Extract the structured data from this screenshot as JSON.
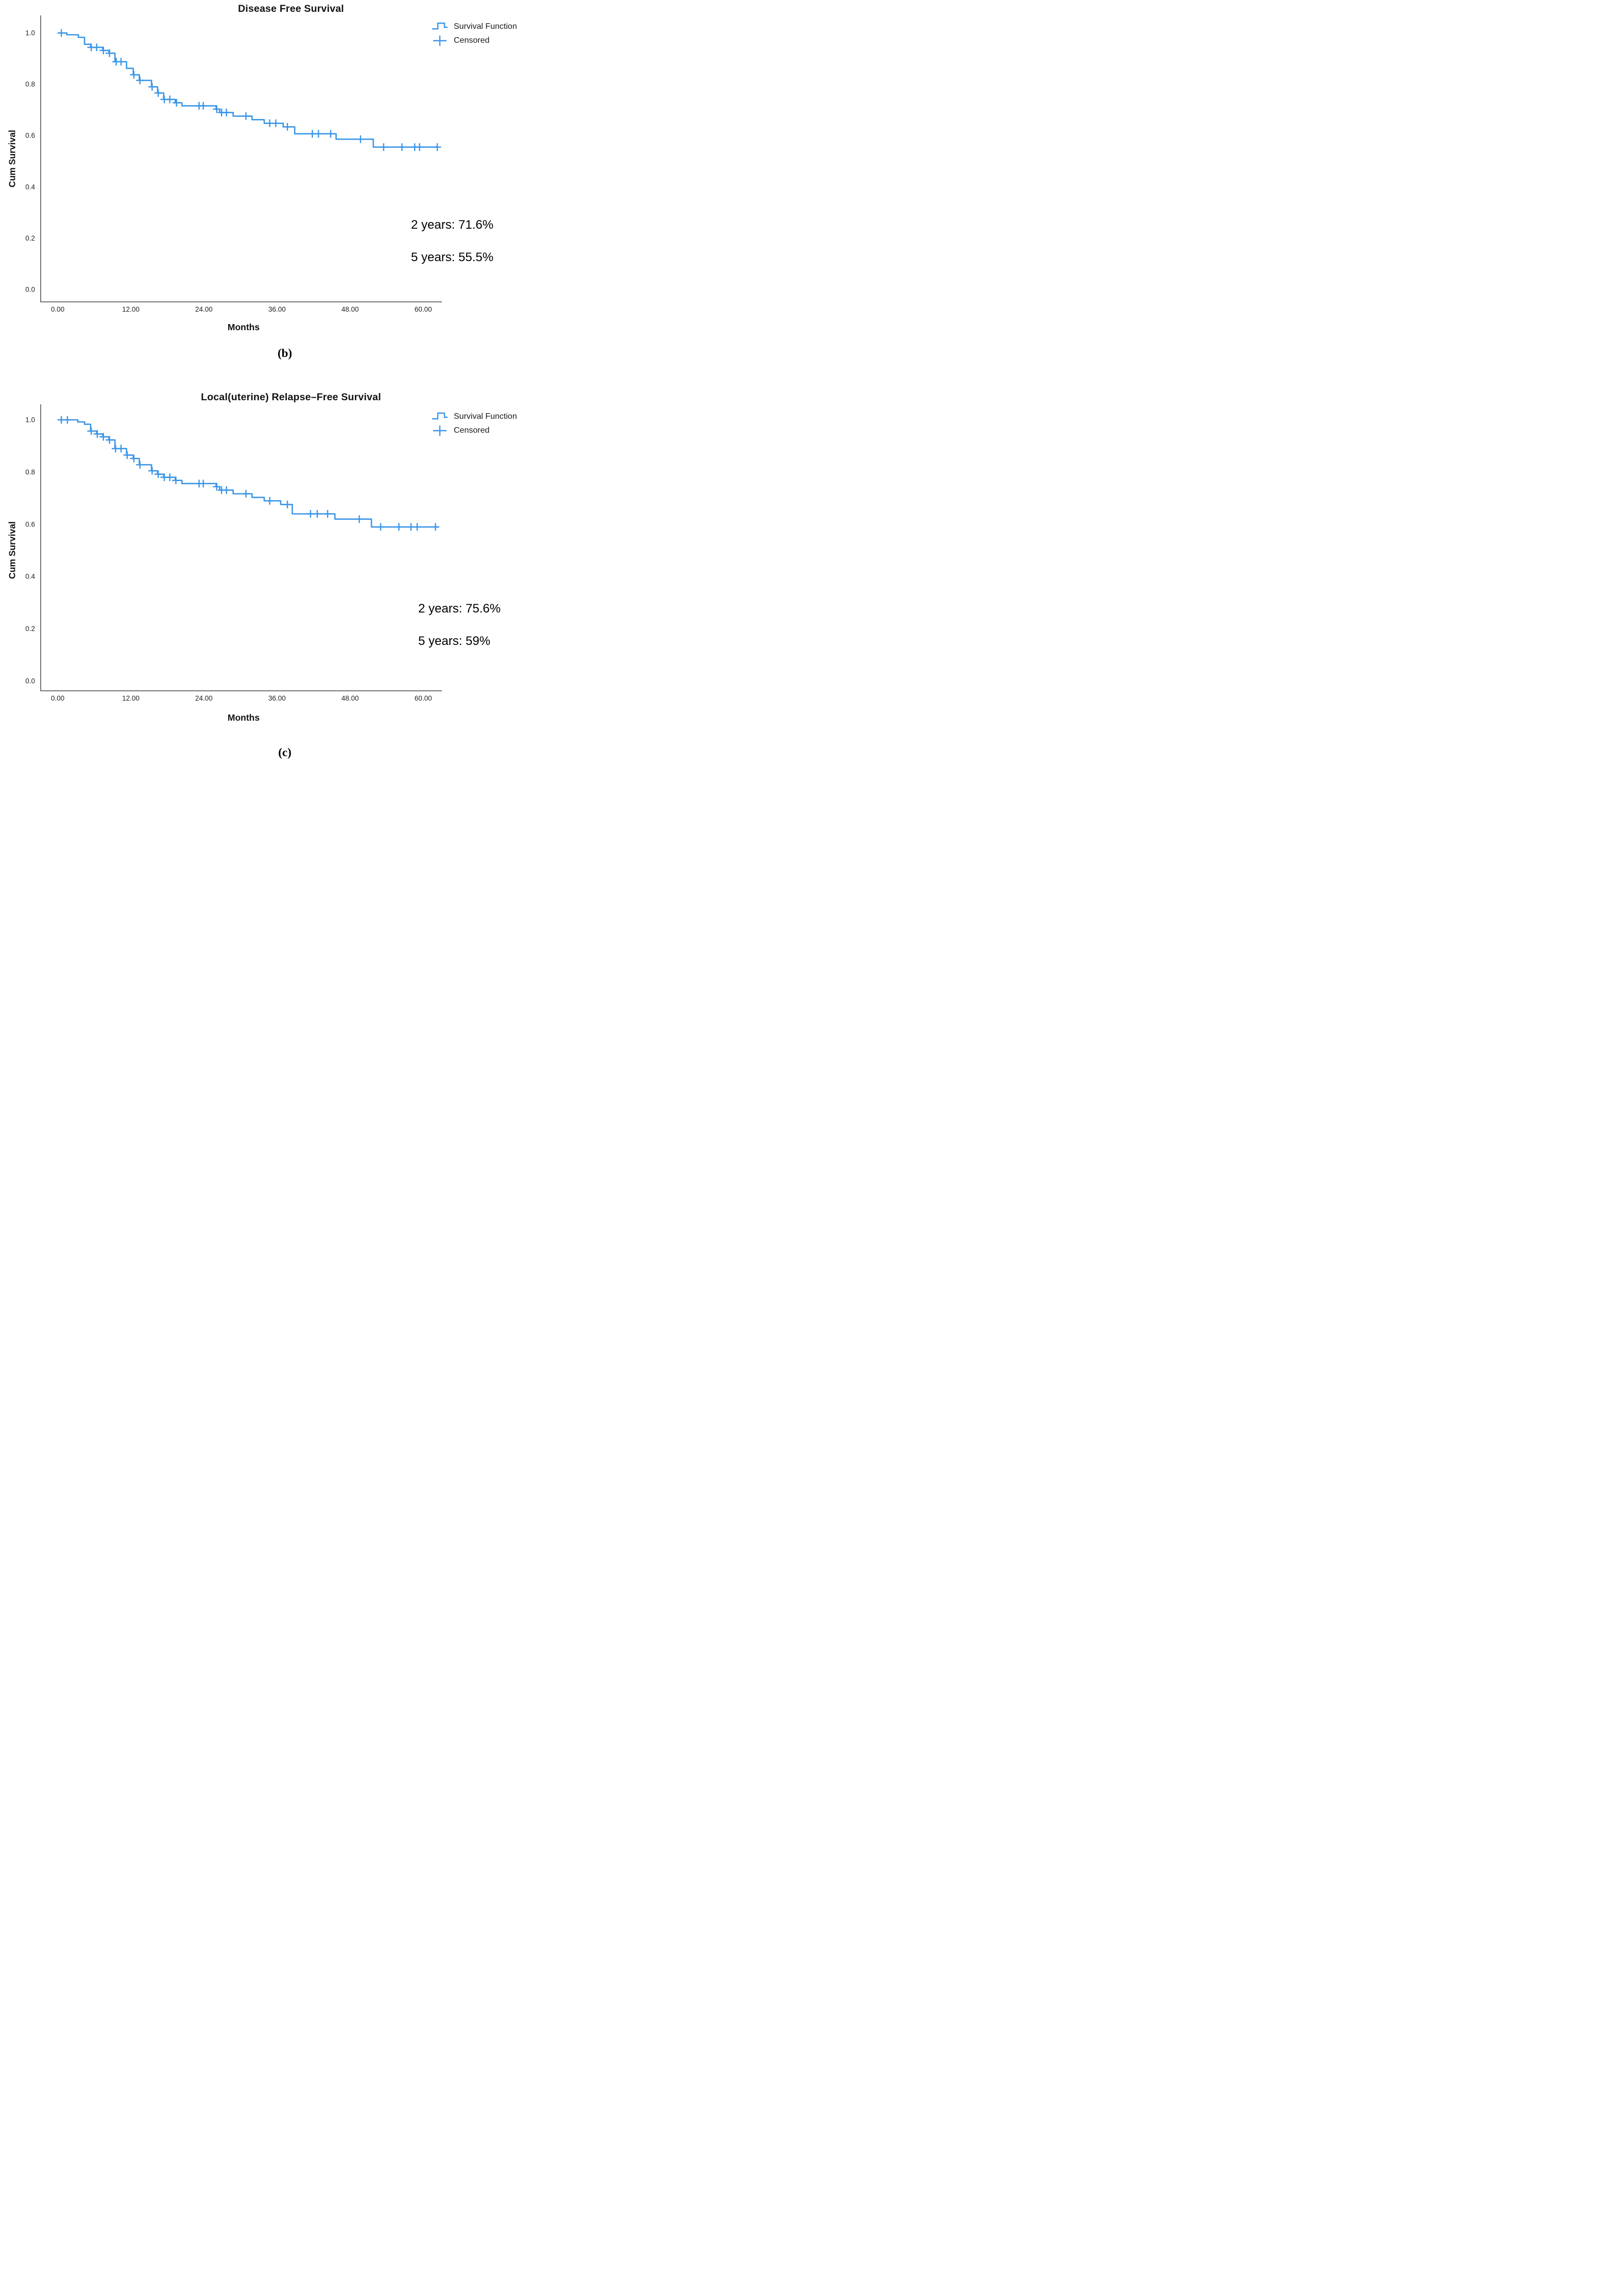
{
  "figure": {
    "background": "#ffffff",
    "accent_color": "#3b96e8",
    "axis_color": "#4a4a4a"
  },
  "chart_data": [
    {
      "type": "line",
      "subtype": "kaplan-meier-step",
      "title": "Disease Free Survival",
      "xlabel": "Months",
      "ylabel": "Cum Survival",
      "panel_label": "(b)",
      "legend": [
        {
          "label": "Survival Function",
          "marker": "step-line"
        },
        {
          "label": "Censored",
          "marker": "plus"
        }
      ],
      "legend_position": "top-right",
      "annotations": [
        {
          "text": "2 years: 71.6%"
        },
        {
          "text": "5 years: 55.5%"
        }
      ],
      "line_color": "#3b96e8",
      "axis_color": "#4a4a4a",
      "grid": false,
      "xlim": [
        -2.8,
        63.2
      ],
      "ylim": [
        0.0,
        1.05
      ],
      "xticks": [
        "0.00",
        "12.00",
        "24.00",
        "36.00",
        "48.00",
        "60.00"
      ],
      "xtick_values": [
        0,
        12,
        24,
        36,
        48,
        60
      ],
      "yticks": [
        "0.0",
        "0.2",
        "0.4",
        "0.6",
        "0.8",
        "1.0"
      ],
      "ytick_values": [
        0.0,
        0.2,
        0.4,
        0.6,
        0.8,
        1.0
      ],
      "end_time": 62.5,
      "steps": [
        [
          0.2,
          1.0
        ],
        [
          1.5,
          0.993
        ],
        [
          3.4,
          0.983
        ],
        [
          4.4,
          0.956
        ],
        [
          5.4,
          0.944
        ],
        [
          7.4,
          0.932
        ],
        [
          8.4,
          0.921
        ],
        [
          9.4,
          0.888
        ],
        [
          11.3,
          0.862
        ],
        [
          12.4,
          0.837
        ],
        [
          13.4,
          0.815
        ],
        [
          15.4,
          0.79
        ],
        [
          16.4,
          0.766
        ],
        [
          17.4,
          0.741
        ],
        [
          19.3,
          0.728
        ],
        [
          20.4,
          0.716
        ],
        [
          26.0,
          0.703
        ],
        [
          26.6,
          0.69
        ],
        [
          28.8,
          0.676
        ],
        [
          31.9,
          0.662
        ],
        [
          33.9,
          0.648
        ],
        [
          37.0,
          0.634
        ],
        [
          38.9,
          0.607
        ],
        [
          45.7,
          0.586
        ],
        [
          51.8,
          0.555
        ]
      ],
      "censors": [
        [
          0.6,
          1.0
        ],
        [
          5.5,
          0.944
        ],
        [
          6.4,
          0.944
        ],
        [
          7.5,
          0.932
        ],
        [
          8.5,
          0.921
        ],
        [
          9.6,
          0.888
        ],
        [
          10.4,
          0.888
        ],
        [
          12.5,
          0.837
        ],
        [
          13.5,
          0.815
        ],
        [
          15.5,
          0.79
        ],
        [
          16.5,
          0.766
        ],
        [
          17.5,
          0.741
        ],
        [
          18.4,
          0.741
        ],
        [
          19.5,
          0.728
        ],
        [
          23.2,
          0.716
        ],
        [
          23.9,
          0.716
        ],
        [
          26.1,
          0.703
        ],
        [
          26.9,
          0.69
        ],
        [
          27.7,
          0.69
        ],
        [
          30.9,
          0.676
        ],
        [
          34.8,
          0.648
        ],
        [
          35.8,
          0.648
        ],
        [
          37.7,
          0.634
        ],
        [
          41.8,
          0.607
        ],
        [
          42.8,
          0.607
        ],
        [
          44.8,
          0.607
        ],
        [
          49.7,
          0.586
        ],
        [
          53.5,
          0.555
        ],
        [
          56.5,
          0.555
        ],
        [
          58.6,
          0.555
        ],
        [
          59.4,
          0.555
        ],
        [
          62.3,
          0.555
        ]
      ],
      "key_values": {
        "survival_2yr": 0.716,
        "survival_5yr": 0.555
      }
    },
    {
      "type": "line",
      "subtype": "kaplan-meier-step",
      "title": "Local(uterine) Relapse–Free Survival",
      "xlabel": "Months",
      "ylabel": "Cum Survival",
      "panel_label": "(c)",
      "legend": [
        {
          "label": "Survival Function",
          "marker": "step-line"
        },
        {
          "label": "Censored",
          "marker": "plus"
        }
      ],
      "legend_position": "top-right",
      "annotations": [
        {
          "text": "2 years: 75.6%"
        },
        {
          "text": "5 years: 59%"
        }
      ],
      "line_color": "#3b96e8",
      "axis_color": "#4a4a4a",
      "grid": false,
      "xlim": [
        -2.8,
        63.2
      ],
      "ylim": [
        0.0,
        1.05
      ],
      "xticks": [
        "0.00",
        "12.00",
        "24.00",
        "36.00",
        "48.00",
        "60.00"
      ],
      "xtick_values": [
        0,
        12,
        24,
        36,
        48,
        60
      ],
      "yticks": [
        "0.0",
        "0.2",
        "0.4",
        "0.6",
        "0.8",
        "1.0"
      ],
      "ytick_values": [
        0.0,
        0.2,
        0.4,
        0.6,
        0.8,
        1.0
      ],
      "end_time": 62.5,
      "steps": [
        [
          0.3,
          1.0
        ],
        [
          3.3,
          0.992
        ],
        [
          4.4,
          0.983
        ],
        [
          5.4,
          0.957
        ],
        [
          6.4,
          0.946
        ],
        [
          7.4,
          0.935
        ],
        [
          8.4,
          0.923
        ],
        [
          9.4,
          0.89
        ],
        [
          11.3,
          0.865
        ],
        [
          12.4,
          0.852
        ],
        [
          13.4,
          0.828
        ],
        [
          15.4,
          0.805
        ],
        [
          16.4,
          0.792
        ],
        [
          17.4,
          0.78
        ],
        [
          19.3,
          0.768
        ],
        [
          20.4,
          0.756
        ],
        [
          26.0,
          0.744
        ],
        [
          26.6,
          0.731
        ],
        [
          28.8,
          0.717
        ],
        [
          31.9,
          0.703
        ],
        [
          33.9,
          0.69
        ],
        [
          36.6,
          0.676
        ],
        [
          38.5,
          0.64
        ],
        [
          45.5,
          0.62
        ],
        [
          51.5,
          0.59
        ]
      ],
      "censors": [
        [
          0.6,
          1.0
        ],
        [
          1.6,
          1.0
        ],
        [
          5.5,
          0.957
        ],
        [
          6.5,
          0.946
        ],
        [
          7.5,
          0.935
        ],
        [
          8.5,
          0.923
        ],
        [
          9.5,
          0.89
        ],
        [
          10.4,
          0.89
        ],
        [
          11.4,
          0.865
        ],
        [
          12.5,
          0.852
        ],
        [
          13.5,
          0.828
        ],
        [
          15.5,
          0.805
        ],
        [
          16.5,
          0.792
        ],
        [
          17.5,
          0.78
        ],
        [
          18.4,
          0.78
        ],
        [
          19.4,
          0.768
        ],
        [
          23.2,
          0.756
        ],
        [
          23.9,
          0.756
        ],
        [
          26.1,
          0.744
        ],
        [
          26.9,
          0.731
        ],
        [
          27.7,
          0.731
        ],
        [
          30.9,
          0.717
        ],
        [
          34.8,
          0.69
        ],
        [
          37.7,
          0.676
        ],
        [
          41.5,
          0.64
        ],
        [
          42.6,
          0.64
        ],
        [
          44.3,
          0.64
        ],
        [
          49.5,
          0.62
        ],
        [
          53.0,
          0.59
        ],
        [
          56.0,
          0.59
        ],
        [
          58.0,
          0.59
        ],
        [
          59.0,
          0.59
        ],
        [
          62.0,
          0.59
        ]
      ],
      "key_values": {
        "survival_2yr": 0.756,
        "survival_5yr": 0.59
      }
    }
  ]
}
